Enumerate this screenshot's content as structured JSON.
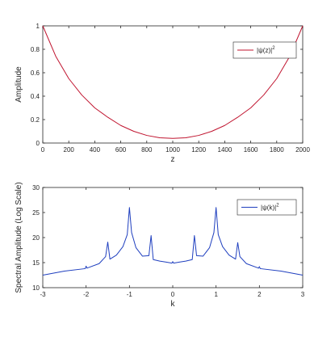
{
  "chart_data": [
    {
      "type": "line",
      "xlabel": "z",
      "ylabel": "Amplitude",
      "xlim": [
        0,
        2000
      ],
      "ylim": [
        0,
        1
      ],
      "xticks": [
        "0",
        "200",
        "400",
        "600",
        "800",
        "1000",
        "1200",
        "1400",
        "1600",
        "1800",
        "2000"
      ],
      "yticks": [
        "0",
        "0.2",
        "0.4",
        "0.6",
        "0.8",
        "1"
      ],
      "grid": false,
      "legend_position": "top-right",
      "series": [
        {
          "name": "|ψ(z)|²",
          "legend_base": "|ψ(z)|",
          "legend_sup": "2",
          "color": "#c0142f",
          "x": [
            0,
            100,
            200,
            300,
            400,
            500,
            600,
            700,
            800,
            900,
            1000,
            1100,
            1200,
            1300,
            1400,
            1500,
            1600,
            1700,
            1800,
            1900,
            2000
          ],
          "values": [
            1.0,
            0.74,
            0.55,
            0.41,
            0.3,
            0.22,
            0.15,
            0.1,
            0.065,
            0.045,
            0.04,
            0.045,
            0.065,
            0.1,
            0.15,
            0.22,
            0.3,
            0.41,
            0.55,
            0.74,
            1.0
          ]
        }
      ]
    },
    {
      "type": "line",
      "xlabel": "k",
      "ylabel": "Spectral Amplitude (Log Scale)",
      "xlim": [
        -3,
        3
      ],
      "ylim": [
        10,
        30
      ],
      "xticks": [
        "-3",
        "-2",
        "-1",
        "0",
        "1",
        "2",
        "3"
      ],
      "yticks": [
        "10",
        "15",
        "20",
        "25",
        "30"
      ],
      "grid": false,
      "legend_position": "top-right",
      "series": [
        {
          "name": "|ψ(k)|²",
          "legend_base": "|ψ(k)|",
          "legend_sup": "2",
          "color": "#1f3fbf",
          "x": [
            -3,
            -2.5,
            -2.02,
            -2.0,
            -1.98,
            -1.7,
            -1.55,
            -1.5,
            -1.45,
            -1.3,
            -1.15,
            -1.05,
            -1.0,
            -0.95,
            -0.85,
            -0.7,
            -0.55,
            -0.5,
            -0.45,
            -0.3,
            -0.15,
            -0.02,
            0.0,
            0.02,
            0.15,
            0.3,
            0.45,
            0.5,
            0.55,
            0.7,
            0.85,
            0.95,
            1.0,
            1.05,
            1.15,
            1.3,
            1.45,
            1.5,
            1.55,
            1.7,
            1.98,
            2.0,
            2.02,
            2.5,
            3
          ],
          "values": [
            12.5,
            13.3,
            13.8,
            14.3,
            13.9,
            14.8,
            16.2,
            19.1,
            15.7,
            16.5,
            18.2,
            20.6,
            26.0,
            21.0,
            18.0,
            16.3,
            16.4,
            20.4,
            15.6,
            15.3,
            15.1,
            14.9,
            15.2,
            14.9,
            15.1,
            15.3,
            15.6,
            20.4,
            16.4,
            16.3,
            18.0,
            21.0,
            26.0,
            20.6,
            18.2,
            16.5,
            15.7,
            19.0,
            16.2,
            14.8,
            13.9,
            14.2,
            13.8,
            13.3,
            12.5
          ]
        }
      ]
    }
  ]
}
